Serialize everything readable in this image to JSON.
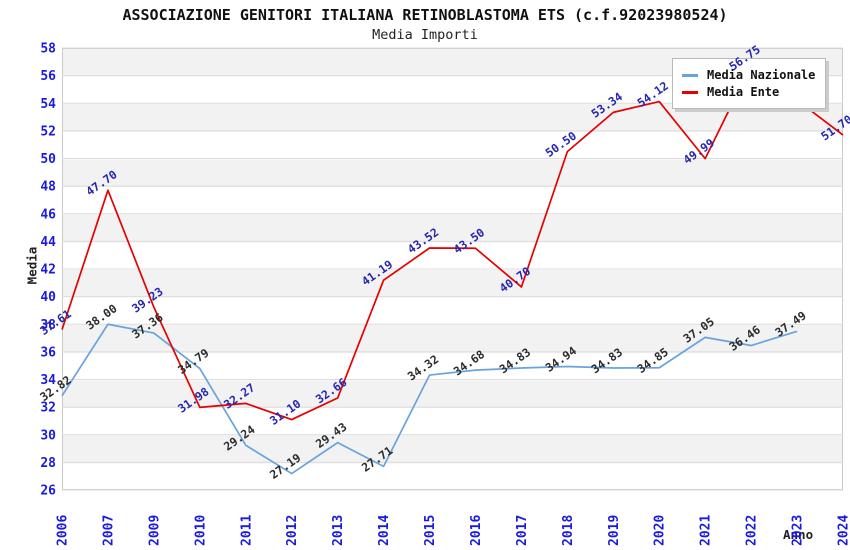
{
  "header": {
    "title": "ASSOCIAZIONE GENITORI ITALIANA RETINOBLASTOMA ETS (c.f.92023980524)",
    "subtitle": "Media Importi"
  },
  "legend": {
    "position": "top-right",
    "items": [
      {
        "label": "Media Nazionale",
        "color": "#69a3dd"
      },
      {
        "label": "Media Ente",
        "color": "#e60000"
      }
    ]
  },
  "colors": {
    "axis_tick_text": "#1a1ae0",
    "gridline": "#dcdcdc",
    "plot_border": "#c9c9c9",
    "stripe_gray": "#f2f2f2",
    "title_text": "#111111"
  },
  "chart_data": {
    "type": "line",
    "title": "ASSOCIAZIONE GENITORI ITALIANA RETINOBLASTOMA ETS (c.f.92023980524)",
    "subtitle": "Media Importi",
    "xlabel": "Anno",
    "ylabel": "Media",
    "ylim": [
      26,
      58
    ],
    "ytick_step": 2,
    "y_ticks": [
      26,
      28,
      30,
      32,
      34,
      36,
      38,
      40,
      42,
      44,
      46,
      48,
      50,
      52,
      54,
      56,
      58
    ],
    "grid": "horizontal, alternating gray/white bands",
    "legend_position": "top-right",
    "categories": [
      "2006",
      "2007",
      "2009",
      "2010",
      "2011",
      "2012",
      "2013",
      "2014",
      "2015",
      "2016",
      "2017",
      "2018",
      "2019",
      "2020",
      "2021",
      "2022",
      "2023",
      "2024"
    ],
    "series": [
      {
        "name": "Media Nazionale",
        "color": "#69a3dd",
        "label_color": "#2b2b2b",
        "values": [
          32.82,
          38.0,
          37.36,
          34.79,
          29.24,
          27.19,
          29.43,
          27.71,
          34.32,
          34.68,
          34.83,
          34.94,
          34.83,
          34.85,
          37.05,
          36.46,
          37.49,
          null
        ]
      },
      {
        "name": "Media Ente",
        "color": "#e60000",
        "label_color": "#2626b0",
        "values": [
          37.61,
          47.7,
          39.23,
          31.98,
          32.27,
          31.1,
          32.66,
          41.19,
          43.52,
          43.5,
          40.7,
          50.5,
          53.34,
          54.12,
          49.99,
          56.75,
          null,
          51.7
        ]
      }
    ]
  }
}
